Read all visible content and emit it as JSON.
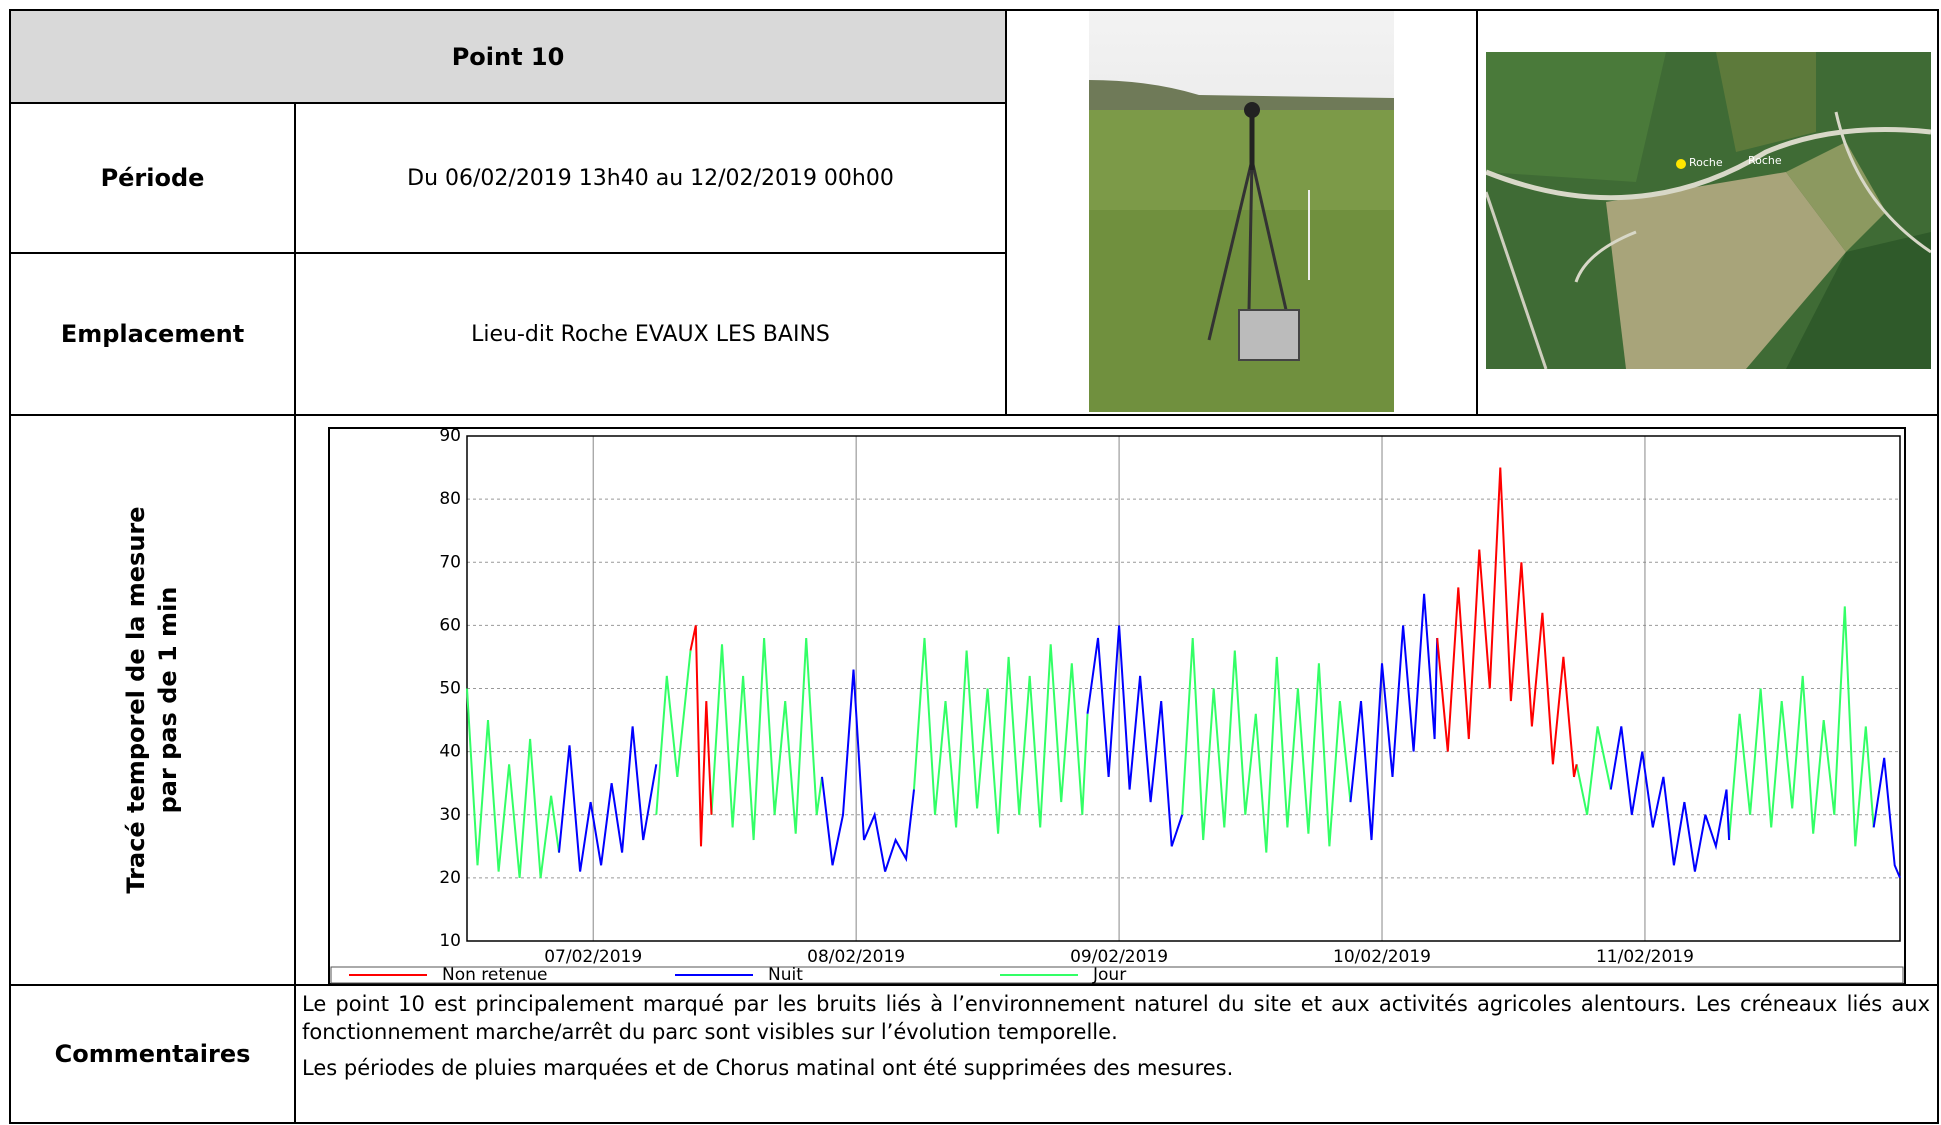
{
  "header": {
    "title": "Point 10"
  },
  "rows": [
    {
      "label": "Période",
      "value": "Du 06/02/2019 13h40 au 12/02/2019 00h00"
    },
    {
      "label": "Emplacement",
      "value": "Lieu-dit Roche EVAUX LES BAINS"
    },
    {
      "label": [
        "Tracé temporel de la mesure",
        "par pas de 1 min"
      ]
    },
    {
      "label": "Commentaires",
      "paragraphs": [
        "Le point 10 est principalement marqué par les bruits liés à l’environnement naturel du site et aux activités agricoles alentours. Les créneaux liés aux fonctionnement marche/arrêt du parc sont visibles sur l’évolution temporelle.",
        "Les périodes de pluies marquées et de Chorus matinal ont été supprimées des mesures."
      ]
    }
  ],
  "map": {
    "labels": [
      "Roche",
      "Roche"
    ]
  },
  "chart_data": {
    "type": "line",
    "xlim": [
      0.52,
      5.97
    ],
    "xticks": [
      {
        "value": 1,
        "label": "07/02/2019"
      },
      {
        "value": 2,
        "label": "08/02/2019"
      },
      {
        "value": 3,
        "label": "09/02/2019"
      },
      {
        "value": 4,
        "label": "10/02/2019"
      },
      {
        "value": 5,
        "label": "11/02/2019"
      }
    ],
    "ylim": [
      10,
      90
    ],
    "yticks": [
      10,
      20,
      30,
      40,
      50,
      60,
      70,
      80,
      90
    ],
    "grid": true,
    "series": [
      {
        "name": "Jour",
        "color": "#33ff66",
        "x": [
          0.52,
          0.56,
          0.6,
          0.64,
          0.68,
          0.72,
          0.76,
          0.8,
          0.84,
          0.87,
          null,
          1.24,
          1.28,
          1.32,
          1.37,
          null,
          1.45,
          1.49,
          1.53,
          1.57,
          1.61,
          1.65,
          1.69,
          1.73,
          1.77,
          1.81,
          1.85,
          1.87,
          null,
          2.22,
          2.26,
          2.3,
          2.34,
          2.38,
          2.42,
          2.46,
          2.5,
          2.54,
          2.58,
          2.62,
          2.66,
          2.7,
          2.74,
          2.78,
          2.82,
          2.86,
          2.88,
          null,
          3.24,
          3.28,
          3.32,
          3.36,
          3.4,
          3.44,
          3.48,
          3.52,
          3.56,
          3.6,
          3.64,
          3.68,
          3.72,
          3.76,
          3.8,
          3.84,
          3.88,
          null,
          4.74,
          4.78,
          4.82,
          4.87,
          null,
          5.32,
          5.36,
          5.4,
          5.44,
          5.48,
          5.52,
          5.56,
          5.6,
          5.64,
          5.68,
          5.72,
          5.76,
          5.8,
          5.84,
          5.87
        ],
        "values": [
          50,
          22,
          45,
          21,
          38,
          20,
          42,
          20,
          33,
          24,
          null,
          30,
          52,
          36,
          56,
          null,
          30,
          57,
          28,
          52,
          26,
          58,
          30,
          48,
          27,
          58,
          30,
          36,
          null,
          34,
          58,
          30,
          48,
          28,
          56,
          31,
          50,
          27,
          55,
          30,
          52,
          28,
          57,
          32,
          54,
          30,
          46,
          null,
          30,
          58,
          26,
          50,
          28,
          56,
          30,
          46,
          24,
          55,
          28,
          50,
          27,
          54,
          25,
          48,
          32,
          null,
          38,
          30,
          44,
          34,
          null,
          26,
          46,
          30,
          50,
          28,
          48,
          31,
          52,
          27,
          45,
          30,
          63,
          25,
          44,
          28
        ]
      },
      {
        "name": "Nuit",
        "color": "#0000ff",
        "x": [
          0.87,
          0.91,
          0.95,
          0.99,
          1.03,
          1.07,
          1.11,
          1.15,
          1.19,
          1.24,
          null,
          1.87,
          1.91,
          1.95,
          1.99,
          2.03,
          2.07,
          2.11,
          2.15,
          2.19,
          2.22,
          null,
          2.88,
          2.92,
          2.96,
          3.0,
          3.04,
          3.08,
          3.12,
          3.16,
          3.2,
          3.24,
          null,
          3.88,
          3.92,
          3.96,
          4.0,
          4.04,
          4.08,
          4.12,
          4.16,
          4.2,
          4.21,
          null,
          4.87,
          4.91,
          4.95,
          4.99,
          5.03,
          5.07,
          5.11,
          5.15,
          5.19,
          5.23,
          5.27,
          5.31,
          5.32,
          null,
          5.87,
          5.91,
          5.95,
          5.97
        ],
        "values": [
          24,
          41,
          21,
          32,
          22,
          35,
          24,
          44,
          26,
          38,
          null,
          36,
          22,
          30,
          53,
          26,
          30,
          21,
          26,
          23,
          34,
          null,
          46,
          58,
          36,
          60,
          34,
          52,
          32,
          48,
          25,
          30,
          null,
          32,
          48,
          26,
          54,
          36,
          60,
          40,
          65,
          42,
          58,
          null,
          34,
          44,
          30,
          40,
          28,
          36,
          22,
          32,
          21,
          30,
          25,
          34,
          26,
          null,
          28,
          39,
          22,
          20
        ]
      },
      {
        "name": "Non retenue",
        "color": "#ff0000",
        "x": [
          1.37,
          1.39,
          1.41,
          1.43,
          1.45,
          null,
          4.21,
          4.25,
          4.29,
          4.33,
          4.37,
          4.41,
          4.45,
          4.49,
          4.53,
          4.57,
          4.61,
          4.65,
          4.69,
          4.73,
          4.74
        ],
        "values": [
          56,
          60,
          25,
          48,
          30,
          null,
          58,
          40,
          66,
          42,
          72,
          50,
          85,
          48,
          70,
          44,
          62,
          38,
          55,
          36,
          38
        ]
      }
    ],
    "legend_order": [
      "Non retenue",
      "Nuit",
      "Jour"
    ]
  }
}
